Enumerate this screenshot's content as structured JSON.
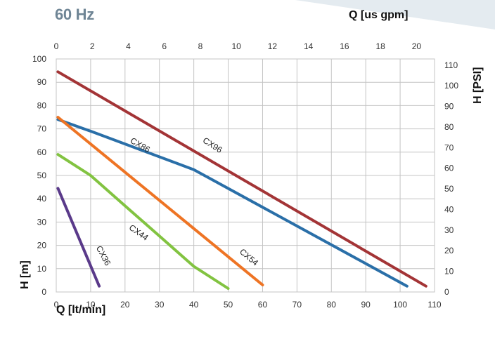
{
  "header": {
    "frequency": "60 Hz"
  },
  "chart_data": {
    "type": "line",
    "xlabel": "Q [lt/min]",
    "ylabel": "H [m]",
    "x2label": "Q [us gpm]",
    "y2label": "H [PSI]",
    "xlim": [
      0,
      110
    ],
    "ylim": [
      0,
      100
    ],
    "x2lim": [
      0,
      21
    ],
    "y2lim": [
      0,
      113
    ],
    "grid": true,
    "x_ticks": [
      0,
      10,
      20,
      30,
      40,
      50,
      60,
      70,
      80,
      90,
      100,
      110
    ],
    "y_ticks": [
      0,
      10,
      20,
      30,
      40,
      50,
      60,
      70,
      80,
      90,
      100
    ],
    "x2_ticks": [
      0,
      2,
      4,
      6,
      8,
      10,
      12,
      14,
      16,
      18,
      20
    ],
    "y2_ticks": [
      0,
      10,
      20,
      30,
      40,
      50,
      60,
      70,
      80,
      90,
      100,
      110
    ],
    "series": [
      {
        "name": "CX96",
        "color": "#a33436",
        "points": [
          [
            0.5,
            94.5
          ],
          [
            107.5,
            2.5
          ]
        ],
        "label_at": [
          45,
          62
        ],
        "label_angle": 33
      },
      {
        "name": "CX86",
        "color": "#2a6fa8",
        "points": [
          [
            0.5,
            74
          ],
          [
            10,
            69
          ],
          [
            40,
            52.5
          ],
          [
            102,
            2.5
          ]
        ],
        "label_at": [
          24,
          62
        ],
        "label_angle": 30
      },
      {
        "name": "CX54",
        "color": "#ee7424",
        "points": [
          [
            0.5,
            75
          ],
          [
            60,
            3
          ]
        ],
        "label_at": [
          55.5,
          14
        ],
        "label_angle": 40
      },
      {
        "name": "CX44",
        "color": "#82c341",
        "points": [
          [
            0.5,
            59
          ],
          [
            10,
            50
          ],
          [
            20,
            37
          ],
          [
            30,
            24
          ],
          [
            40,
            11
          ],
          [
            50,
            1.5
          ]
        ],
        "label_at": [
          23.5,
          24.5
        ],
        "label_angle": 35
      },
      {
        "name": "CX36",
        "color": "#5a3a8a",
        "points": [
          [
            0.5,
            44.5
          ],
          [
            12.5,
            2.5
          ]
        ],
        "label_at": [
          13,
          15
        ],
        "label_angle": 62
      }
    ]
  }
}
